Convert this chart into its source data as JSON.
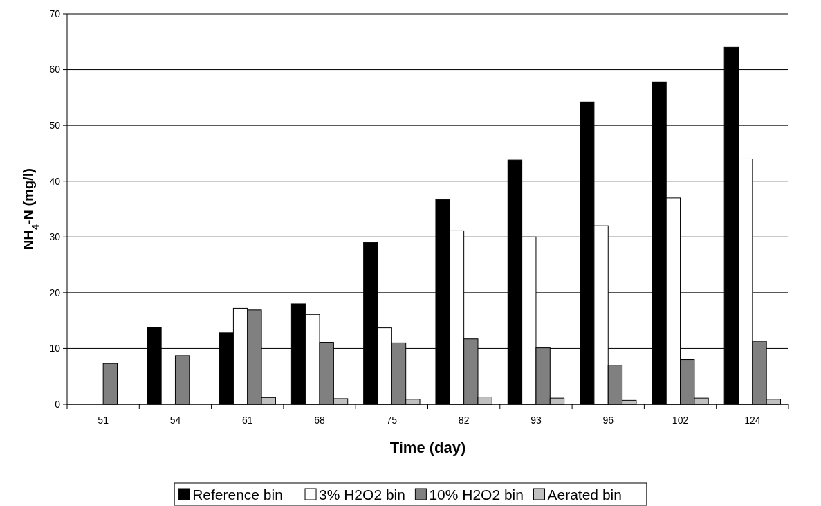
{
  "chart_data": {
    "type": "bar",
    "xlabel": "Time (day)",
    "ylabel": "NH$_{4}$-N (mg/l)",
    "categories": [
      "51",
      "54",
      "61",
      "68",
      "75",
      "82",
      "93",
      "96",
      "102",
      "124"
    ],
    "series": [
      {
        "name": "Reference bin",
        "color": "#000000",
        "values": [
          null,
          13.8,
          12.8,
          18.0,
          29.0,
          36.7,
          43.8,
          54.2,
          57.8,
          64.0
        ]
      },
      {
        "name": "3% H2O2 bin",
        "color": "#ffffff",
        "values": [
          null,
          null,
          17.2,
          16.1,
          13.7,
          31.1,
          30.0,
          32.0,
          37.0,
          44.0
        ]
      },
      {
        "name": "10% H2O2 bin",
        "color": "#808080",
        "values": [
          7.3,
          8.7,
          16.9,
          11.1,
          11.0,
          11.7,
          10.1,
          7.0,
          8.0,
          11.3
        ]
      },
      {
        "name": "Aerated bin",
        "color": "#c0c0c0",
        "values": [
          null,
          null,
          1.2,
          1.0,
          0.9,
          1.3,
          1.1,
          0.7,
          1.1,
          0.9
        ]
      }
    ],
    "ylim": [
      0,
      70
    ],
    "yticks": [
      0,
      10,
      20,
      30,
      40,
      50,
      60,
      70
    ],
    "grid": "y",
    "legend": "bottom"
  }
}
